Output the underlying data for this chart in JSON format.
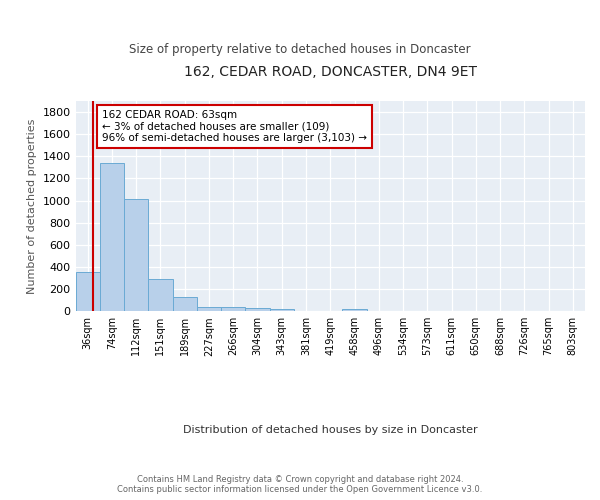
{
  "title": "162, CEDAR ROAD, DONCASTER, DN4 9ET",
  "subtitle": "Size of property relative to detached houses in Doncaster",
  "xlabel": "Distribution of detached houses by size in Doncaster",
  "ylabel": "Number of detached properties",
  "bin_labels": [
    "36sqm",
    "74sqm",
    "112sqm",
    "151sqm",
    "189sqm",
    "227sqm",
    "266sqm",
    "304sqm",
    "343sqm",
    "381sqm",
    "419sqm",
    "458sqm",
    "496sqm",
    "534sqm",
    "573sqm",
    "611sqm",
    "650sqm",
    "688sqm",
    "726sqm",
    "765sqm",
    "803sqm"
  ],
  "bar_heights": [
    355,
    1340,
    1010,
    295,
    130,
    42,
    38,
    27,
    18,
    0,
    0,
    22,
    0,
    0,
    0,
    0,
    0,
    0,
    0,
    0,
    0
  ],
  "bar_color": "#b8d0ea",
  "bar_edge_color": "#6aaad4",
  "annotation_line1": "162 CEDAR ROAD: 63sqm",
  "annotation_line2": "← 3% of detached houses are smaller (109)",
  "annotation_line3": "96% of semi-detached houses are larger (3,103) →",
  "annotation_box_color": "#ffffff",
  "annotation_box_edge_color": "#cc0000",
  "ylim": [
    0,
    1900
  ],
  "bg_color": "#e8eef5",
  "footer_line1": "Contains HM Land Registry data © Crown copyright and database right 2024.",
  "footer_line2": "Contains public sector information licensed under the Open Government Licence v3.0."
}
